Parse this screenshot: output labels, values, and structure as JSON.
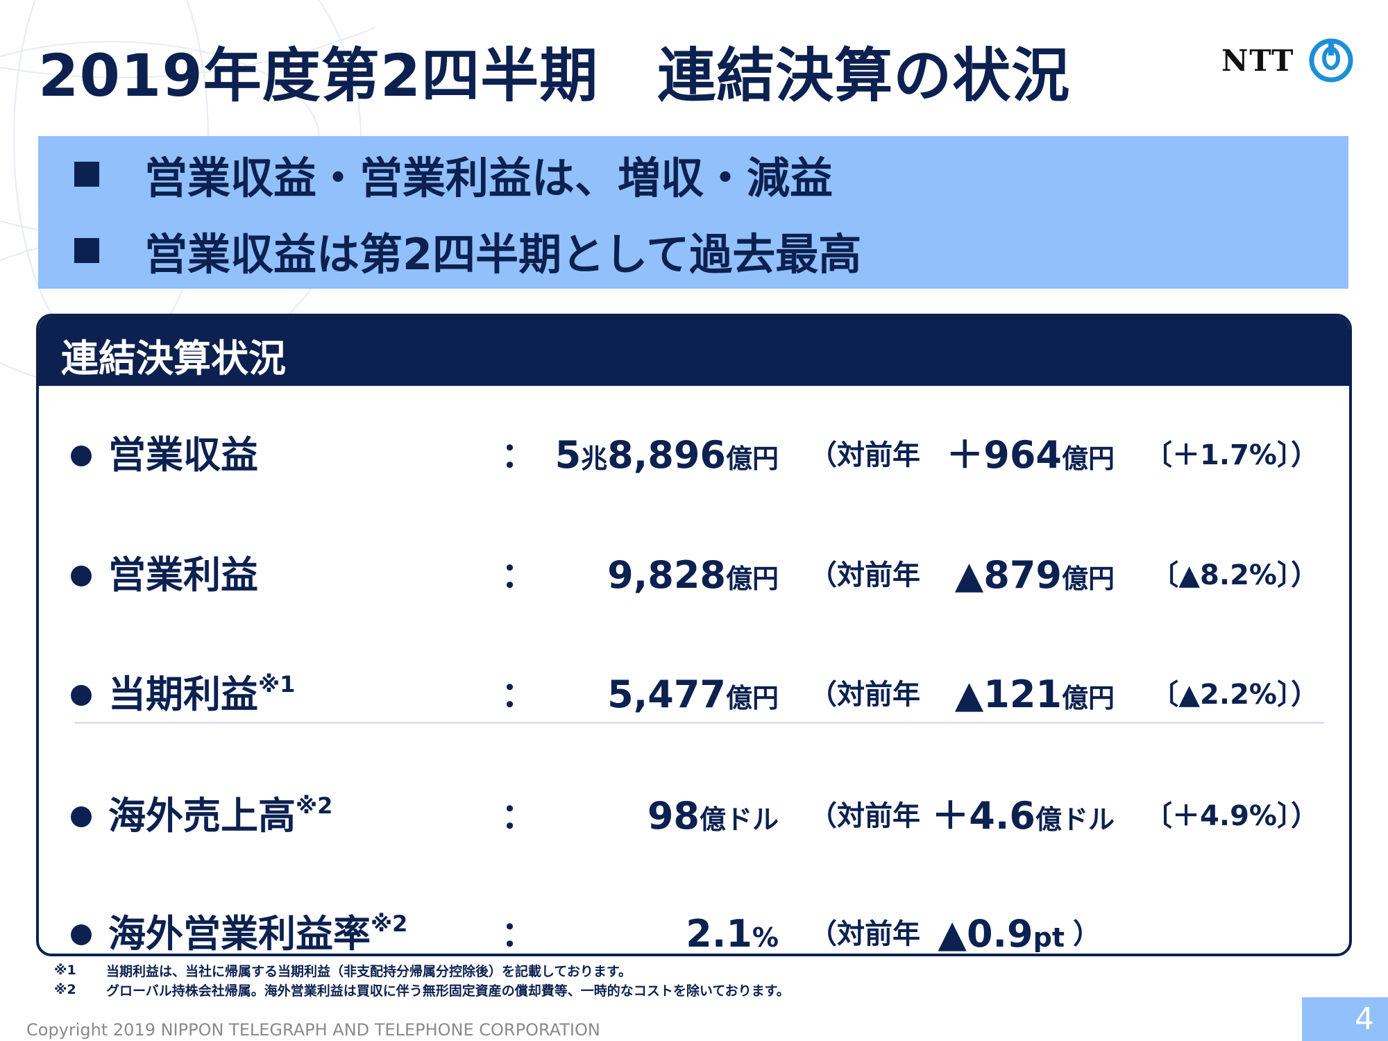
{
  "slide": {
    "title": "2019年度第2四半期　連結決算の状況",
    "logo_text": "NTT",
    "banner": [
      "営業収益・営業利益は、増収・減益",
      "営業収益は第2四半期として過去最高"
    ],
    "panel": {
      "heading": "連結決算状況",
      "rows": [
        {
          "label": "営業収益",
          "sup": "",
          "colon": "：",
          "value": "5",
          "value_unit": "兆",
          "value2": "8,896",
          "value2_unit": "億円",
          "yoy": "（対前年",
          "change": "＋964",
          "change_unit": "億円",
          "pct": "〔＋1.7%〕）"
        },
        {
          "label": "営業利益",
          "sup": "",
          "colon": "：",
          "value": "9,828",
          "value_unit": "億円",
          "yoy": "（対前年",
          "change": "▲879",
          "change_unit": "億円",
          "pct": "〔▲8.2%〕）"
        },
        {
          "label": "当期利益",
          "sup": "※1",
          "colon": "：",
          "value": "5,477",
          "value_unit": "億円",
          "yoy": "（対前年",
          "change": "▲121",
          "change_unit": "億円",
          "pct": "〔▲2.2%〕）"
        },
        {
          "label": "海外売上高",
          "sup": "※2",
          "colon": "：",
          "value": "98",
          "value_unit": "億ドル",
          "yoy": "（対前年",
          "change": "＋4.6",
          "change_unit": "億ドル",
          "pct": "〔＋4.9%〕）"
        },
        {
          "label": "海外営業利益率",
          "sup": "※2",
          "colon": "：",
          "value": "2.1",
          "value_unit": "%",
          "yoy": "（対前年",
          "change": "▲0.9",
          "change_unit": "pt",
          "pct": "）"
        }
      ]
    },
    "notes": [
      {
        "mark": "※1",
        "text": "当期利益は、当社に帰属する当期利益（非支配持分帰属分控除後）を記載しております。"
      },
      {
        "mark": "※2",
        "text": "グローバル持株会社帰属。海外営業利益は買収に伴う無形固定資産の償却費等、一時的なコストを除いております。"
      }
    ],
    "copyright": "Copyright 2019 NIPPON TELEGRAPH AND TELEPHONE CORPORATION",
    "page_number": "4",
    "colors": {
      "navy": "#0c2150",
      "light_blue": "#91c0fa"
    }
  }
}
